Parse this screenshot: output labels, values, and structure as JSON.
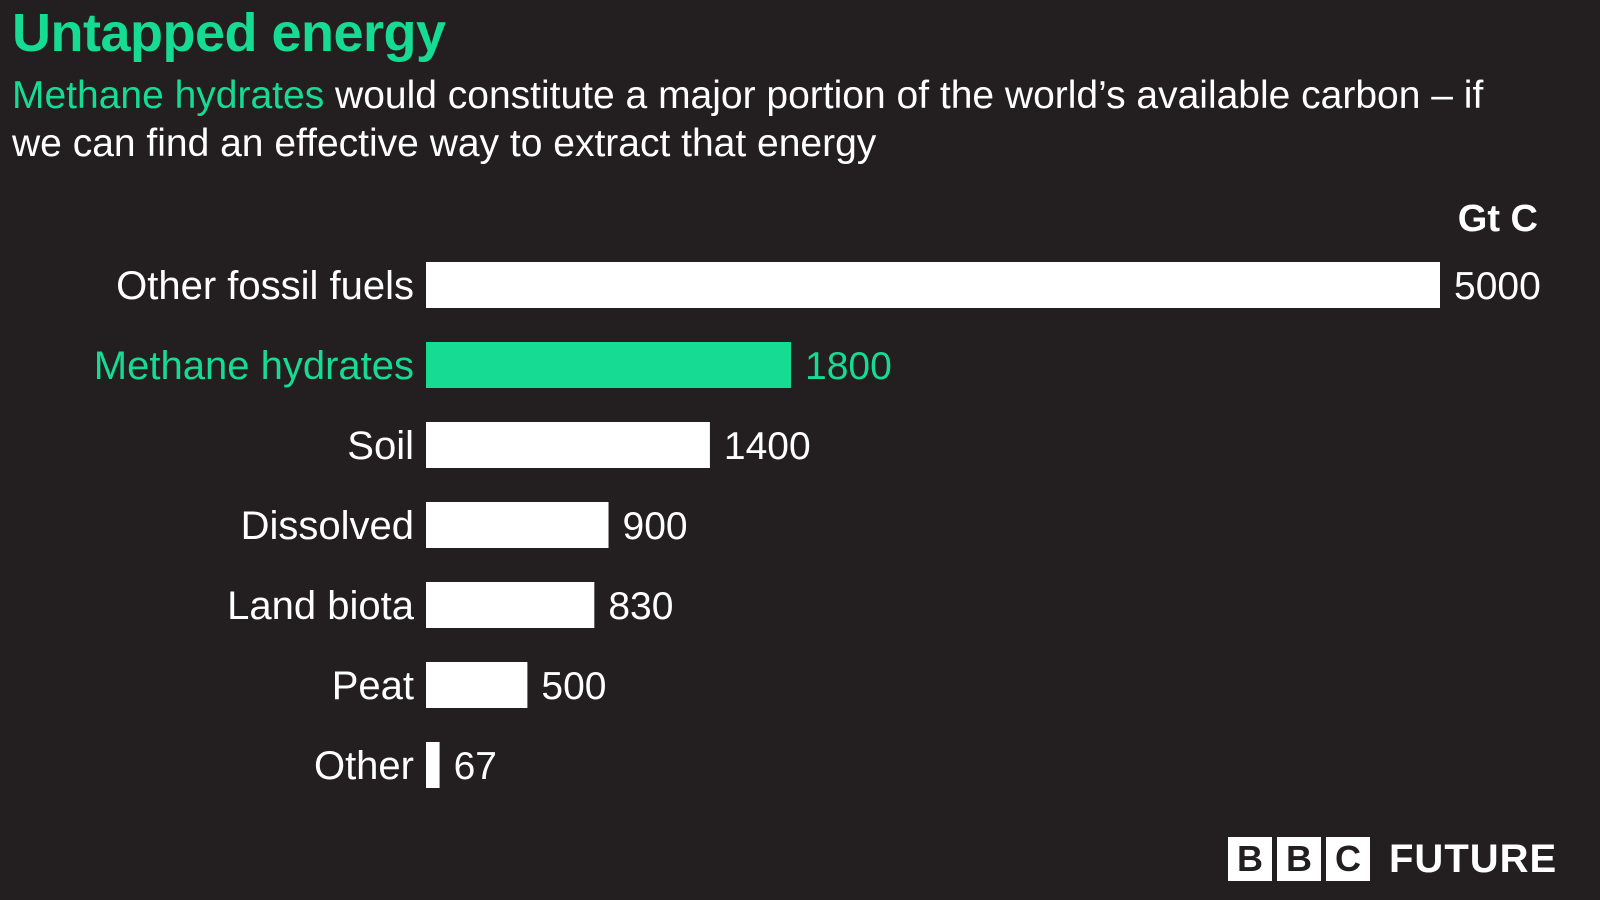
{
  "header": {
    "title": "Untapped energy",
    "subtitle_highlight": "Methane hydrates",
    "subtitle_rest": " would constitute a major portion of the world’s available carbon – if we can find an effective way to extract that energy"
  },
  "branding": {
    "logo_letters": [
      "B",
      "B",
      "C"
    ],
    "logo_word": "FUTURE"
  },
  "colors": {
    "background": "#231f20",
    "bar": "#ffffff",
    "highlight": "#16db93"
  },
  "chart_data": {
    "type": "bar",
    "orientation": "horizontal",
    "unit": "Gt C",
    "categories": [
      "Other fossil fuels",
      "Methane hydrates",
      "Soil",
      "Dissolved",
      "Land biota",
      "Peat",
      "Other"
    ],
    "values": [
      5000,
      1800,
      1400,
      900,
      830,
      500,
      67
    ],
    "highlight_category": "Methane hydrates",
    "xlim": [
      0,
      5000
    ],
    "grid": false,
    "legend": "none",
    "data_labels": true
  }
}
